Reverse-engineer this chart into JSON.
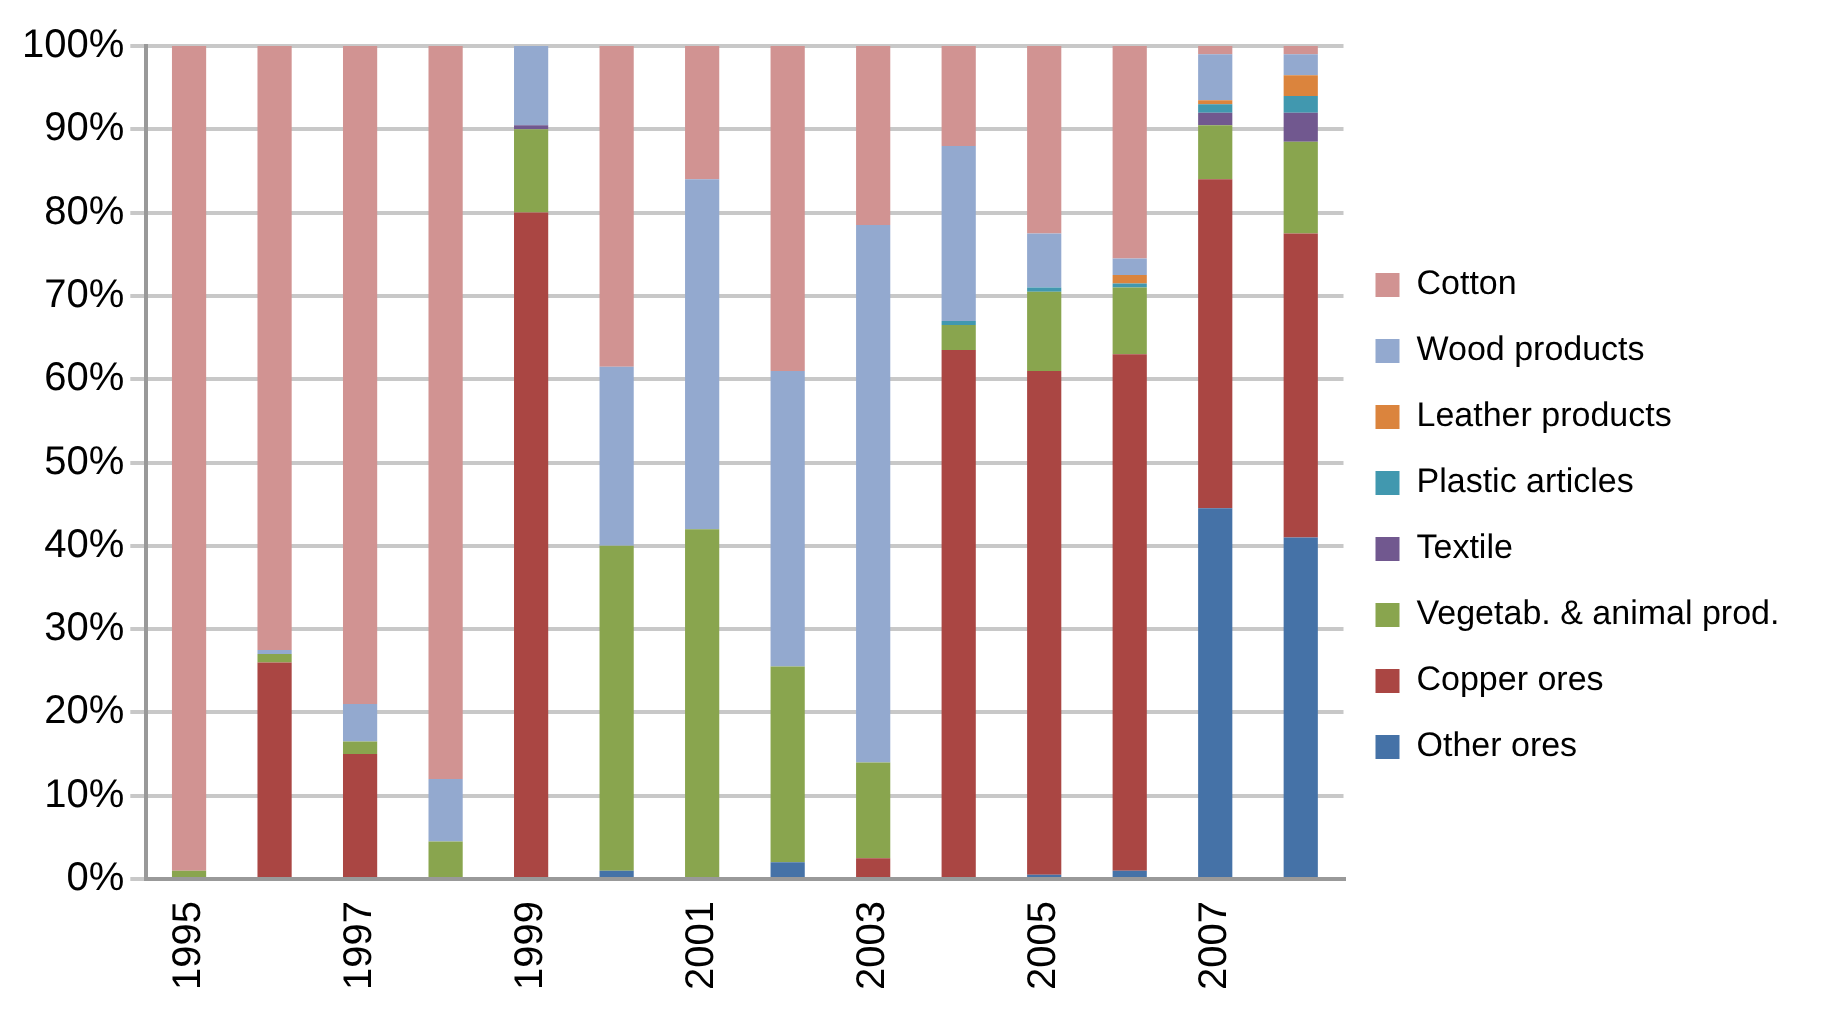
{
  "chart_data": {
    "type": "bar",
    "stacked": true,
    "categories": [
      "1995",
      null,
      "1997",
      null,
      "1999",
      null,
      "2001",
      null,
      "2003",
      null,
      "2005",
      null,
      "2007",
      null
    ],
    "series": [
      {
        "name": "Other ores",
        "color": "#4572a7",
        "values": [
          0,
          0,
          0,
          0,
          0,
          1,
          0,
          2,
          0,
          0,
          0.5,
          1,
          44.5,
          41
        ]
      },
      {
        "name": "Copper ores",
        "color": "#aa4643",
        "values": [
          0,
          26,
          15,
          0,
          80,
          0,
          0,
          0,
          2.5,
          63.5,
          60.5,
          62,
          39.5,
          36.5
        ]
      },
      {
        "name": "Vegetab. & animal prod.",
        "color": "#89a54e",
        "values": [
          1,
          1,
          1.5,
          4.5,
          10,
          39,
          42,
          23.5,
          11.5,
          3,
          9.5,
          8,
          6.5,
          11
        ]
      },
      {
        "name": "Textile",
        "color": "#71588f",
        "values": [
          0,
          0,
          0,
          0,
          0.5,
          0,
          0,
          0,
          0,
          0,
          0,
          0,
          1.5,
          3.5
        ]
      },
      {
        "name": "Plastic articles",
        "color": "#4198af",
        "values": [
          0,
          0,
          0,
          0,
          0,
          0,
          0,
          0,
          0,
          0.5,
          0.5,
          0.5,
          1,
          2
        ]
      },
      {
        "name": "Leather products",
        "color": "#db843d",
        "values": [
          0,
          0,
          0,
          0,
          0,
          0,
          0,
          0,
          0,
          0,
          0,
          1,
          0.5,
          2.5
        ]
      },
      {
        "name": "Wood products",
        "color": "#93a9cf",
        "values": [
          0,
          0.5,
          4.5,
          7.5,
          9.5,
          21.5,
          42,
          35.5,
          64.5,
          21,
          6.5,
          2,
          5.5,
          2.5
        ]
      },
      {
        "name": "Cotton",
        "color": "#d19392",
        "values": [
          99,
          72.5,
          79,
          88,
          0,
          38.5,
          16,
          39,
          21.5,
          12,
          22.5,
          25.5,
          1,
          1
        ]
      }
    ],
    "ylim": [
      0,
      100
    ],
    "yticks": [
      {
        "value": 0,
        "label": "0%"
      },
      {
        "value": 10,
        "label": "10%"
      },
      {
        "value": 20,
        "label": "20%"
      },
      {
        "value": 30,
        "label": "30%"
      },
      {
        "value": 40,
        "label": "40%"
      },
      {
        "value": 50,
        "label": "50%"
      },
      {
        "value": 60,
        "label": "60%"
      },
      {
        "value": 70,
        "label": "70%"
      },
      {
        "value": 80,
        "label": "80%"
      },
      {
        "value": 90,
        "label": "90%"
      },
      {
        "value": 100,
        "label": "100%"
      }
    ],
    "grid": "y",
    "legend": "right"
  }
}
